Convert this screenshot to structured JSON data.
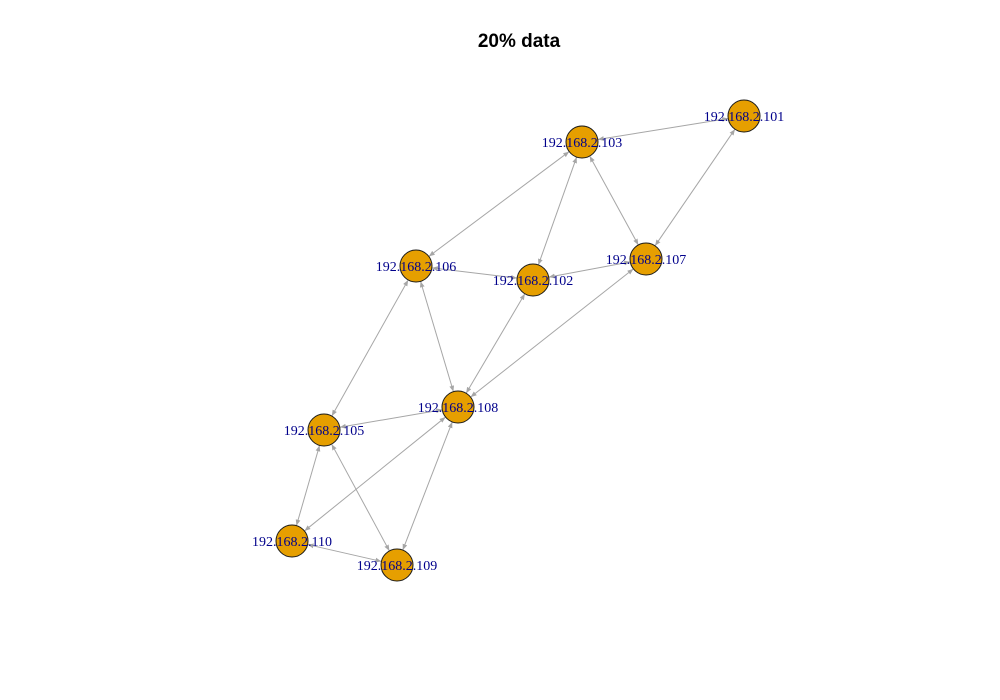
{
  "title": "20% data",
  "colors": {
    "node_fill": "#E69F00",
    "node_border": "#1a1a1a",
    "label": "#00008B",
    "edge": "#a6a6a6"
  },
  "nodes": [
    {
      "id": "101",
      "label": "192.168.2.101"
    },
    {
      "id": "102",
      "label": "192.168.2.102"
    },
    {
      "id": "103",
      "label": "192.168.2.103"
    },
    {
      "id": "105",
      "label": "192.168.2.105"
    },
    {
      "id": "106",
      "label": "192.168.2.106"
    },
    {
      "id": "107",
      "label": "192.168.2.107"
    },
    {
      "id": "108",
      "label": "192.168.2.108"
    },
    {
      "id": "109",
      "label": "192.168.2.109"
    },
    {
      "id": "110",
      "label": "192.168.2.110"
    }
  ],
  "edges": [
    {
      "from": "101",
      "to": "103"
    },
    {
      "from": "101",
      "to": "107"
    },
    {
      "from": "103",
      "to": "106"
    },
    {
      "from": "103",
      "to": "107"
    },
    {
      "from": "102",
      "to": "103"
    },
    {
      "from": "106",
      "to": "102"
    },
    {
      "from": "102",
      "to": "107"
    },
    {
      "from": "106",
      "to": "108"
    },
    {
      "from": "106",
      "to": "105"
    },
    {
      "from": "102",
      "to": "108"
    },
    {
      "from": "107",
      "to": "108"
    },
    {
      "from": "108",
      "to": "105"
    },
    {
      "from": "108",
      "to": "110"
    },
    {
      "from": "108",
      "to": "109"
    },
    {
      "from": "105",
      "to": "110"
    },
    {
      "from": "105",
      "to": "109"
    },
    {
      "from": "110",
      "to": "109"
    }
  ]
}
